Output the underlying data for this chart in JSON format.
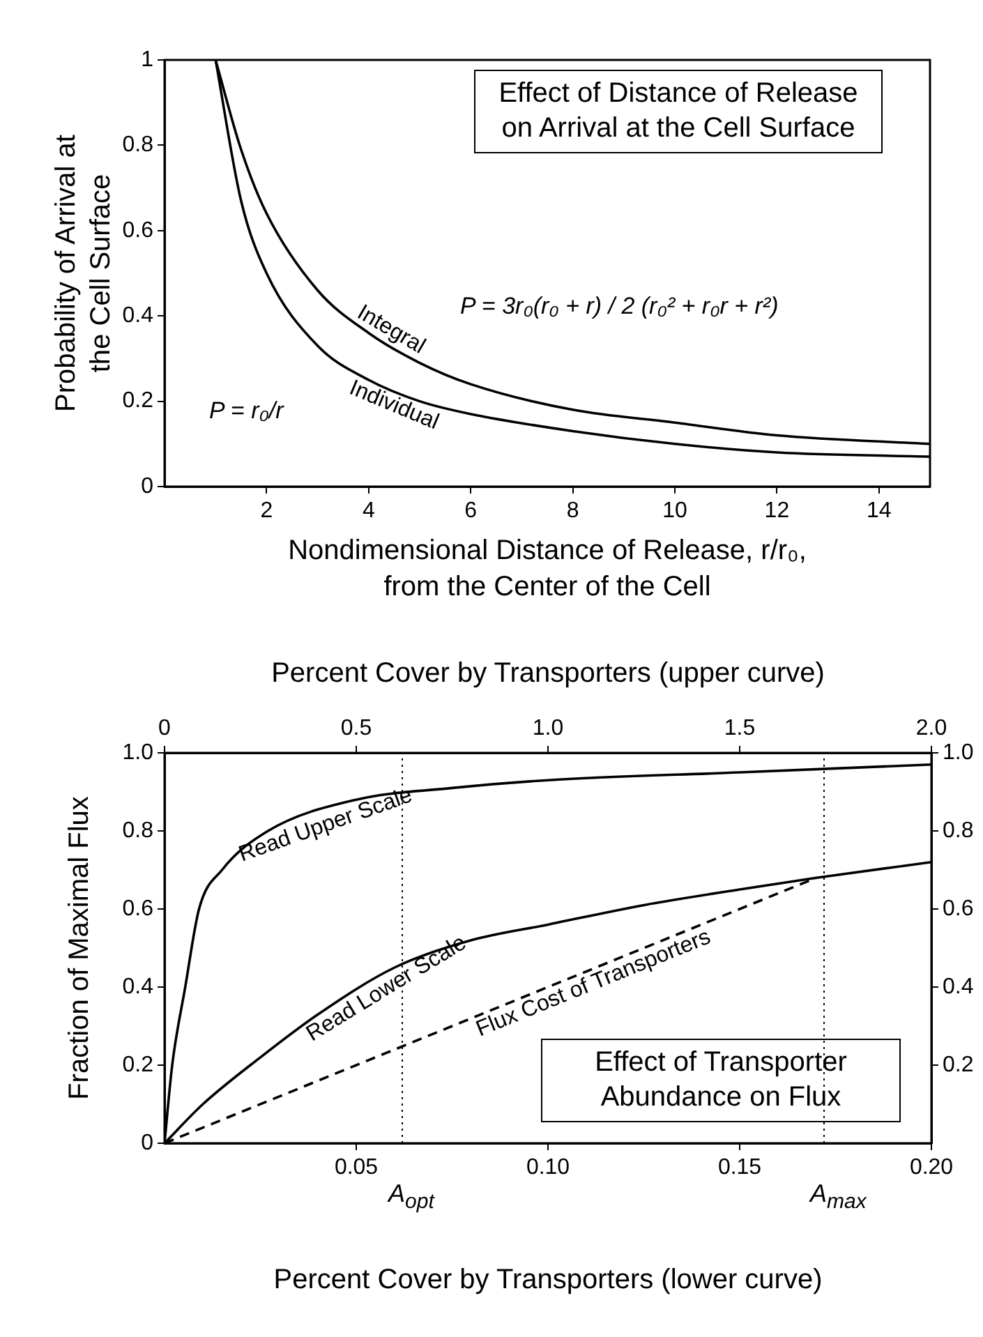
{
  "chart_data": [
    {
      "type": "line",
      "title": "Effect of Distance of Release on Arrival at the Cell Surface",
      "xlabel": "Nondimensional Distance of Release, r/r₀, from the Center of the Cell",
      "ylabel": "Probability of Arrival at the Cell Surface",
      "xlim": [
        0,
        15
      ],
      "xticks": [
        2,
        4,
        6,
        8,
        10,
        12,
        14
      ],
      "ylim": [
        0,
        1
      ],
      "yticks": [
        0,
        0.2,
        0.4,
        0.6,
        0.8,
        1
      ],
      "grid": false,
      "legend": false,
      "annotations": [
        "P = r₀/r",
        "P = 3r₀(r₀ + r) / 2 (r₀² + r₀r + r²)"
      ],
      "series": [
        {
          "name": "Integral",
          "color": "#000000",
          "x": [
            1,
            1.5,
            2,
            3,
            4,
            5,
            6,
            8,
            10,
            12,
            15
          ],
          "values": [
            1,
            0.79,
            0.64,
            0.46,
            0.36,
            0.29,
            0.24,
            0.18,
            0.15,
            0.12,
            0.1
          ]
        },
        {
          "name": "Individual",
          "color": "#000000",
          "x": [
            1,
            1.5,
            2,
            3,
            4,
            5,
            6,
            8,
            10,
            12,
            15
          ],
          "values": [
            1,
            0.67,
            0.5,
            0.33,
            0.25,
            0.2,
            0.17,
            0.13,
            0.1,
            0.08,
            0.07
          ]
        }
      ]
    },
    {
      "type": "line",
      "title": "Effect of Transporter Abundance on Flux",
      "xlabel": "Percent Cover by Transporters (lower curve)",
      "x2label": "Percent Cover by Transporters (upper curve)",
      "ylabel": "Fraction of Maximal Flux",
      "xlim": [
        0,
        0.2
      ],
      "xticks": [
        0.05,
        {
          "value": 0.1,
          "label": "0.10"
        },
        0.15,
        {
          "value": 0.2,
          "label": "0.20"
        }
      ],
      "x2lim": [
        0,
        2
      ],
      "x2ticks": [
        0,
        0.5,
        {
          "value": 1,
          "label": "1.0"
        },
        1.5,
        {
          "value": 2,
          "label": "2.0"
        }
      ],
      "ylim": [
        0,
        1
      ],
      "yticks": [
        0,
        0.2,
        0.4,
        0.6,
        0.8,
        {
          "value": 1,
          "label": "1.0"
        }
      ],
      "y2lim": [
        0,
        1
      ],
      "y2ticks": [
        0.2,
        0.4,
        0.6,
        0.8,
        {
          "value": 1,
          "label": "1.0"
        }
      ],
      "grid": false,
      "legend": false,
      "ref_lines": [
        {
          "axis": "x",
          "value": 0.062,
          "label": "A$_{opt}$",
          "line_style": "dotted",
          "color": "#000000"
        },
        {
          "axis": "x",
          "value": 0.172,
          "label": "A$_{max}$",
          "line_style": "dotted",
          "color": "#000000"
        }
      ],
      "series": [
        {
          "name": "Read Upper Scale",
          "axis": "x2",
          "color": "#000000",
          "x": [
            0,
            0.02,
            0.054,
            0.09,
            0.15,
            0.27,
            0.5,
            0.75,
            1,
            1.5,
            2
          ],
          "values": [
            0,
            0.2,
            0.4,
            0.6,
            0.7,
            0.8,
            0.88,
            0.91,
            0.93,
            0.95,
            0.97
          ]
        },
        {
          "name": "Read Lower Scale",
          "color": "#000000",
          "x": [
            0,
            0.01,
            0.025,
            0.04,
            0.06,
            0.08,
            0.1,
            0.125,
            0.15,
            0.17,
            0.2
          ],
          "values": [
            0,
            0.1,
            0.22,
            0.33,
            0.45,
            0.52,
            0.56,
            0.61,
            0.65,
            0.68,
            0.72
          ]
        },
        {
          "name": "Flux Cost of Transporters",
          "color": "#000000",
          "line_style": "dashed",
          "x": [
            0,
            0.17
          ],
          "values": [
            0,
            0.68
          ]
        }
      ]
    }
  ]
}
